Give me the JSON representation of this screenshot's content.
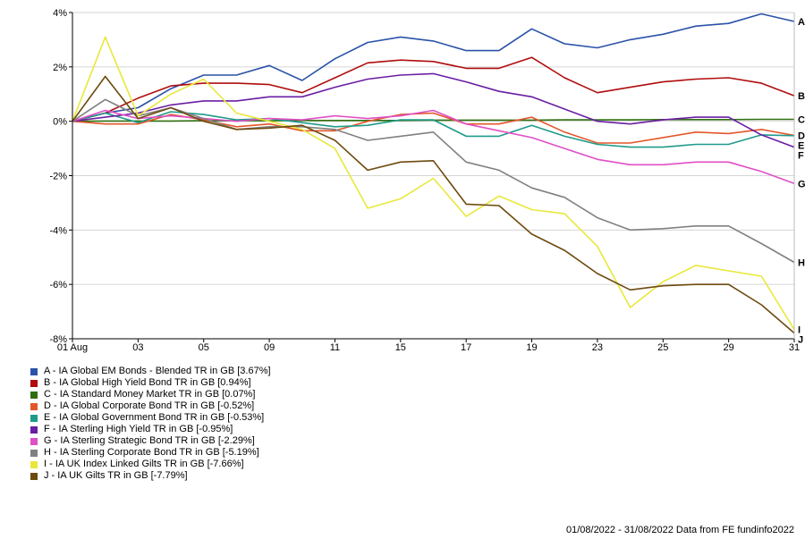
{
  "chart_data": {
    "type": "line",
    "x_tick_labels": [
      "01 Aug",
      "03",
      "05",
      "09",
      "11",
      "15",
      "17",
      "19",
      "23",
      "25",
      "29",
      "31"
    ],
    "x_tick_index": [
      0,
      2,
      4,
      6,
      8,
      10,
      12,
      14,
      16,
      18,
      20,
      22
    ],
    "y_tick_labels": [
      "4%",
      "2%",
      "0%",
      "-2%",
      "-4%",
      "-6%",
      "-8%"
    ],
    "yticks": [
      4,
      2,
      0,
      -2,
      -4,
      -6,
      -8
    ],
    "ylim": [
      -8,
      4
    ],
    "grid": "horizontal",
    "series": [
      {
        "name": "A - IA Global EM Bonds - Blended TR in GB [3.67%]",
        "end_label": "A",
        "color": "#2a52a8",
        "values": [
          0,
          0.3,
          0.5,
          1.2,
          1.7,
          1.7,
          2.05,
          1.5,
          2.3,
          2.9,
          3.1,
          2.95,
          2.6,
          2.6,
          3.4,
          2.85,
          2.7,
          3.0,
          3.2,
          3.5,
          3.6,
          3.95,
          3.67
        ]
      },
      {
        "name": "B - IA Global High Yield Bond TR in GB [0.94%]",
        "end_label": "B",
        "color": "#b00d0d",
        "values": [
          0,
          0.3,
          0.85,
          1.3,
          1.4,
          1.4,
          1.35,
          1.05,
          1.6,
          2.15,
          2.25,
          2.2,
          1.95,
          1.95,
          2.35,
          1.6,
          1.05,
          1.25,
          1.45,
          1.55,
          1.6,
          1.4,
          0.94
        ]
      },
      {
        "name": "C - IA Standard Money Market TR in GB [0.07%]",
        "end_label": "C",
        "color": "#2f6f10",
        "values": [
          0,
          0.01,
          0.01,
          0.01,
          0.02,
          0.02,
          0.02,
          0.03,
          0.03,
          0.03,
          0.03,
          0.04,
          0.04,
          0.04,
          0.04,
          0.05,
          0.05,
          0.05,
          0.06,
          0.06,
          0.06,
          0.07,
          0.07
        ]
      },
      {
        "name": "D - IA Global Corporate Bond TR in GB [-0.52%]",
        "end_label": "D",
        "color": "#e2572a",
        "values": [
          0,
          -0.1,
          -0.1,
          0.25,
          0.05,
          -0.2,
          -0.1,
          -0.35,
          -0.35,
          0.0,
          0.25,
          0.3,
          -0.1,
          -0.1,
          0.15,
          -0.4,
          -0.8,
          -0.8,
          -0.6,
          -0.4,
          -0.45,
          -0.3,
          -0.52
        ]
      },
      {
        "name": "E - IA Global Government Bond TR in GB [-0.53%]",
        "end_label": "E",
        "color": "#1f9a8a",
        "values": [
          0,
          0.3,
          -0.05,
          0.35,
          0.25,
          0.05,
          0.1,
          -0.05,
          -0.2,
          -0.15,
          0.05,
          0.05,
          -0.55,
          -0.55,
          -0.15,
          -0.55,
          -0.85,
          -0.95,
          -0.95,
          -0.85,
          -0.85,
          -0.5,
          -0.53
        ]
      },
      {
        "name": "F - IA Sterling High Yield TR in GB [-0.95%]",
        "end_label": "F",
        "color": "#6a1ea3",
        "values": [
          0,
          0.15,
          0.3,
          0.6,
          0.75,
          0.75,
          0.9,
          0.9,
          1.25,
          1.55,
          1.7,
          1.75,
          1.45,
          1.1,
          0.9,
          0.45,
          0.0,
          -0.1,
          0.05,
          0.15,
          0.15,
          -0.5,
          -0.95
        ]
      },
      {
        "name": "G - IA Sterling Strategic Bond TR in GB [-2.29%]",
        "end_label": "G",
        "color": "#e04fc6",
        "values": [
          0,
          0.4,
          0.1,
          0.2,
          0.1,
          0.0,
          0.1,
          0.05,
          0.2,
          0.1,
          0.2,
          0.4,
          -0.1,
          -0.35,
          -0.6,
          -1.0,
          -1.4,
          -1.6,
          -1.6,
          -1.5,
          -1.5,
          -1.85,
          -2.29
        ]
      },
      {
        "name": "H - IA Sterling Corporate Bond TR in GB [-5.19%]",
        "end_label": "H",
        "color": "#808080",
        "values": [
          0,
          0.8,
          0.2,
          0.5,
          0.1,
          -0.3,
          -0.2,
          -0.2,
          -0.3,
          -0.7,
          -0.55,
          -0.4,
          -1.5,
          -1.8,
          -2.45,
          -2.8,
          -3.55,
          -4.0,
          -3.95,
          -3.85,
          -3.85,
          -4.5,
          -5.19
        ]
      },
      {
        "name": "I - IA UK Index Linked Gilts TR in GB [-7.66%]",
        "end_label": "I",
        "color": "#e8e83a",
        "values": [
          0,
          3.1,
          0.2,
          1.0,
          1.55,
          0.3,
          0.0,
          -0.3,
          -1.0,
          -3.2,
          -2.85,
          -2.1,
          -3.5,
          -2.75,
          -3.25,
          -3.4,
          -4.6,
          -6.85,
          -5.9,
          -5.3,
          -5.5,
          -5.7,
          -7.66
        ]
      },
      {
        "name": "J - IA UK Gilts TR in GB [-7.79%]",
        "end_label": "J",
        "color": "#6e4a0e",
        "values": [
          0,
          1.65,
          0.1,
          0.5,
          0.0,
          -0.3,
          -0.25,
          -0.15,
          -0.7,
          -1.8,
          -1.5,
          -1.45,
          -3.05,
          -3.1,
          -4.15,
          -4.75,
          -5.6,
          -6.2,
          -6.05,
          -6.0,
          -6.0,
          -6.75,
          -7.79
        ]
      }
    ]
  },
  "footer": {
    "text": "01/08/2022 - 31/08/2022 Data from FE fundinfo2022"
  }
}
